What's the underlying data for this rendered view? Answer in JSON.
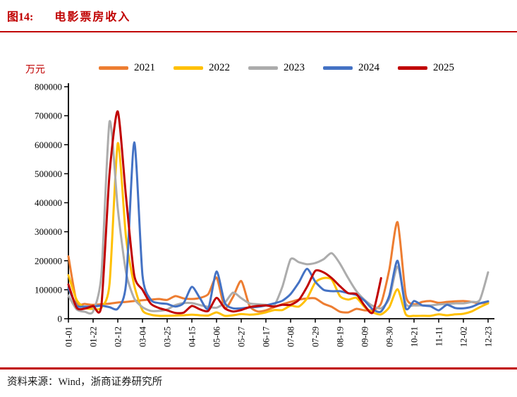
{
  "header": {
    "figure_label": "图14:",
    "title": "电影票房收入"
  },
  "footer": {
    "source": "资料来源：Wind，浙商证券研究所"
  },
  "chart_data": {
    "type": "line",
    "title": "电影票房收入",
    "unit": "万元",
    "ylabel": "万元",
    "ylim": [
      0,
      800000
    ],
    "y_ticks": [
      0,
      100000,
      200000,
      300000,
      400000,
      500000,
      600000,
      700000,
      800000
    ],
    "grid": false,
    "legend_position": "top",
    "x_tick_labels": [
      "01-01",
      "01-22",
      "02-12",
      "03-04",
      "03-25",
      "04-15",
      "05-06",
      "05-27",
      "06-17",
      "07-08",
      "07-29",
      "08-19",
      "09-09",
      "09-30",
      "10-21",
      "11-11",
      "12-02",
      "12-23"
    ],
    "categories": [
      "01-01",
      "01-08",
      "01-15",
      "01-22",
      "01-29",
      "02-05",
      "02-12",
      "02-19",
      "02-26",
      "03-04",
      "03-11",
      "03-18",
      "03-25",
      "04-01",
      "04-08",
      "04-15",
      "04-22",
      "04-29",
      "05-06",
      "05-13",
      "05-20",
      "05-27",
      "06-03",
      "06-10",
      "06-17",
      "06-24",
      "07-01",
      "07-08",
      "07-15",
      "07-22",
      "07-29",
      "08-05",
      "08-12",
      "08-19",
      "08-26",
      "09-02",
      "09-09",
      "09-16",
      "09-23",
      "09-30",
      "10-07",
      "10-14",
      "10-21",
      "10-28",
      "11-04",
      "11-11",
      "11-18",
      "11-25",
      "12-02",
      "12-09",
      "12-16",
      "12-23"
    ],
    "series": [
      {
        "name": "2021",
        "color": "#ED7D31",
        "values": [
          215000,
          58000,
          51000,
          48000,
          50000,
          52000,
          56000,
          58000,
          61000,
          64000,
          66000,
          68000,
          65000,
          78000,
          70000,
          68000,
          72000,
          85000,
          142000,
          38000,
          75000,
          130000,
          45000,
          25000,
          29000,
          40000,
          50000,
          58000,
          66000,
          70000,
          70000,
          52000,
          41000,
          24000,
          22000,
          34000,
          29000,
          30000,
          53000,
          170000,
          333000,
          80000,
          50000,
          58000,
          61000,
          55000,
          58000,
          60000,
          61000,
          58000,
          53000,
          57000
        ]
      },
      {
        "name": "2022",
        "color": "#FFC000",
        "values": [
          150000,
          65000,
          38000,
          34000,
          38000,
          120000,
          605000,
          280000,
          115000,
          29000,
          14000,
          10000,
          10000,
          11000,
          12000,
          14000,
          12000,
          11000,
          22000,
          10000,
          12000,
          16000,
          14000,
          16000,
          22000,
          30000,
          30000,
          45000,
          42000,
          70000,
          125000,
          140000,
          135000,
          78000,
          66000,
          72000,
          40000,
          22000,
          15000,
          40000,
          102000,
          15000,
          10000,
          10000,
          10000,
          15000,
          12000,
          15000,
          17000,
          25000,
          40000,
          53000
        ]
      },
      {
        "name": "2023",
        "color": "#ACACAC",
        "values": [
          80000,
          32000,
          24000,
          25000,
          150000,
          680000,
          380000,
          160000,
          70000,
          40000,
          27000,
          27000,
          32000,
          47000,
          54000,
          54000,
          47000,
          41000,
          38000,
          55000,
          90000,
          71000,
          53000,
          50000,
          48000,
          46000,
          110000,
          205000,
          195000,
          188000,
          192000,
          205000,
          226000,
          190000,
          140000,
          95000,
          65000,
          44000,
          36000,
          70000,
          180000,
          52000,
          46000,
          46000,
          46000,
          49000,
          51000,
          53000,
          53000,
          58000,
          65000,
          160000
        ]
      },
      {
        "name": "2024",
        "color": "#4472C4",
        "values": [
          105000,
          45000,
          42000,
          42000,
          45000,
          40000,
          35000,
          120000,
          608000,
          150000,
          66000,
          54000,
          51000,
          42000,
          54000,
          110000,
          70000,
          35000,
          163000,
          55000,
          36000,
          36000,
          39000,
          41000,
          46000,
          53000,
          62000,
          85000,
          125000,
          172000,
          128000,
          100000,
          95000,
          95000,
          88000,
          82000,
          62000,
          32000,
          25000,
          80000,
          200000,
          36000,
          61000,
          46000,
          43000,
          29000,
          48000,
          37000,
          36000,
          41000,
          53000,
          60000
        ]
      },
      {
        "name": "2025",
        "color": "#C00000",
        "values": [
          118000,
          38000,
          35000,
          44000,
          45000,
          500000,
          715000,
          420000,
          150000,
          100000,
          52000,
          37000,
          29000,
          20000,
          21000,
          44000,
          32000,
          27000,
          72000,
          36000,
          25000,
          30000,
          40000,
          44000,
          46000,
          42000,
          48000,
          48000,
          65000,
          110000,
          165000,
          160000,
          140000,
          112000,
          88000,
          85000,
          45000,
          22000,
          140000
        ]
      }
    ]
  }
}
